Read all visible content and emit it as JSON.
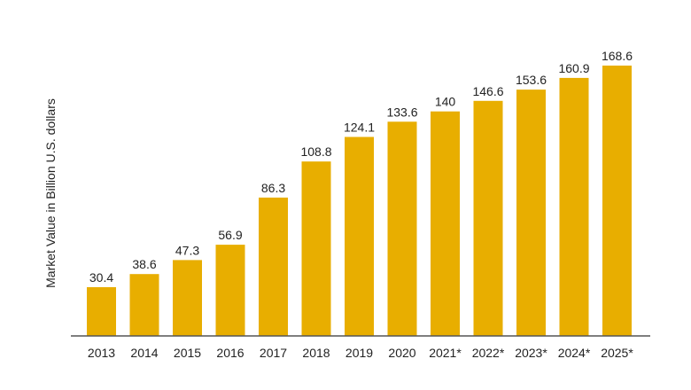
{
  "chart_data": {
    "type": "bar",
    "categories": [
      "2013",
      "2014",
      "2015",
      "2016",
      "2017",
      "2018",
      "2019",
      "2020",
      "2021*",
      "2022*",
      "2023*",
      "2024*",
      "2025*"
    ],
    "values": [
      30.4,
      38.6,
      47.3,
      56.9,
      86.3,
      108.8,
      124.1,
      133.6,
      140,
      146.6,
      153.6,
      160.9,
      168.6
    ],
    "data_labels": [
      "30.4",
      "38.6",
      "47.3",
      "56.9",
      "86.3",
      "108.8",
      "124.1",
      "133.6",
      "140",
      "146.6",
      "153.6",
      "160.9",
      "168.6"
    ],
    "title": "",
    "xlabel": "",
    "ylabel": "Market Value in Billion U.S. dollars",
    "ylim": [
      0,
      175
    ],
    "grid": false,
    "legend": "none",
    "bar_color": "#E8AE00",
    "axis_color": "#555555",
    "text_color": "#222222"
  }
}
